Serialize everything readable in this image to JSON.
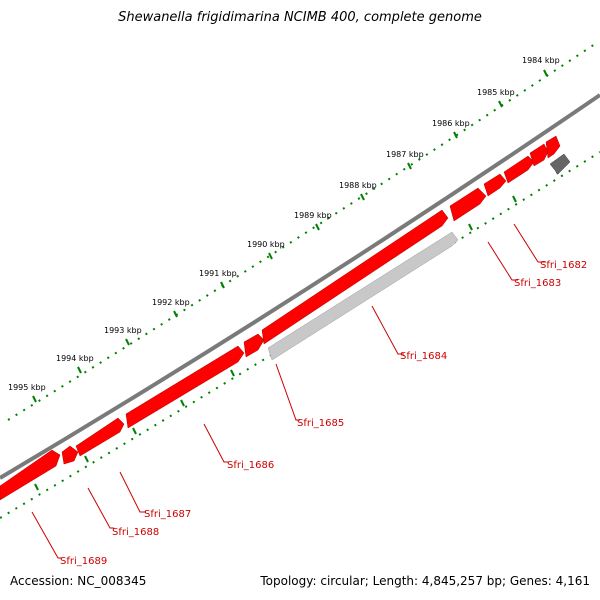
{
  "title": "Shewanella frigidimarina NCIMB 400, complete genome",
  "accession": "Accession: NC_008345",
  "summary": "Topology: circular; Length: 4,845,257 bp; Genes: 4,161",
  "colors": {
    "backbone": "#7a7a7a",
    "gene_forward": "#ff0000",
    "gene_reverse_light": "#c8c8c8",
    "gene_reverse_dark": "#666666",
    "tick": "#008000",
    "label": "#cc0000"
  },
  "kbp_labels": [
    "1984 kbp",
    "1985 kbp",
    "1986 kbp",
    "1987 kbp",
    "1988 kbp",
    "1989 kbp",
    "1990 kbp",
    "1991 kbp",
    "1992 kbp",
    "1993 kbp",
    "1994 kbp",
    "1995 kbp"
  ],
  "gene_labels": [
    "Sfri_1682",
    "Sfri_1683",
    "Sfri_1684",
    "Sfri_1685",
    "Sfri_1686",
    "Sfri_1687",
    "Sfri_1688",
    "Sfri_1689"
  ]
}
